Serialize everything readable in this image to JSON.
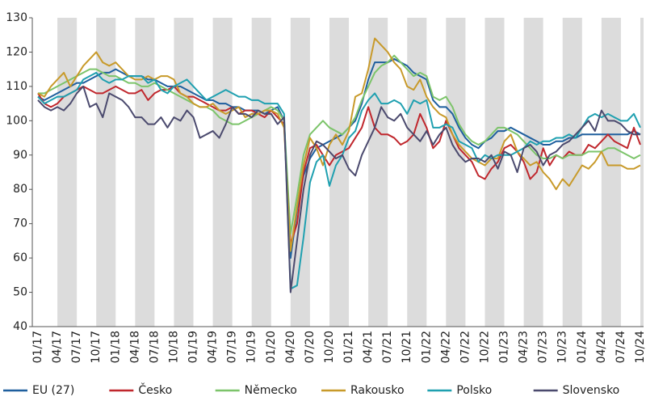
{
  "chart_data": {
    "type": "line",
    "categories": [
      "01/17",
      null,
      null,
      "04/17",
      null,
      null,
      "07/17",
      null,
      null,
      "10/17",
      null,
      null,
      "01/18",
      null,
      null,
      "04/18",
      null,
      null,
      "07/18",
      null,
      null,
      "10/18",
      null,
      null,
      "01/19",
      null,
      null,
      "04/19",
      null,
      null,
      "07/19",
      null,
      null,
      "10/19",
      null,
      null,
      "01/20",
      null,
      null,
      "04/20",
      null,
      null,
      "07/20",
      null,
      null,
      "10/20",
      null,
      null,
      "01/21",
      null,
      null,
      "04/21",
      null,
      null,
      "07/21",
      null,
      null,
      "10/21",
      null,
      null,
      "01/22",
      null,
      null,
      "04/22",
      null,
      null,
      "07/22",
      null,
      null,
      "10/22",
      null,
      null,
      "01/23",
      null,
      null,
      "04/23",
      null,
      null,
      "07/23",
      null,
      null,
      "10/23",
      null,
      null,
      "01/24",
      null,
      null,
      "04/24",
      null,
      null,
      "07/24",
      null,
      null,
      "10/24"
    ],
    "ylim": [
      40,
      130
    ],
    "yticks": [
      40,
      50,
      60,
      70,
      80,
      90,
      100,
      110,
      120,
      130
    ],
    "series": [
      {
        "name": "EU (27)",
        "color": "#1f5f9e",
        "values": [
          107,
          106,
          107,
          108,
          109,
          110,
          111,
          111,
          112,
          113,
          114,
          114,
          115,
          114,
          113,
          113,
          113,
          112,
          112,
          111,
          110,
          110,
          110,
          109,
          108,
          107,
          106,
          106,
          105,
          105,
          104,
          104,
          103,
          103,
          103,
          102,
          103,
          104,
          100,
          60,
          74,
          84,
          89,
          92,
          93,
          94,
          95,
          96,
          98,
          100,
          105,
          112,
          117,
          117,
          117,
          118,
          117,
          116,
          114,
          113,
          112,
          106,
          104,
          104,
          102,
          98,
          95,
          93,
          92,
          94,
          95,
          97,
          97,
          98,
          97,
          96,
          95,
          94,
          93,
          93,
          94,
          94,
          95,
          95,
          96,
          96,
          96,
          96,
          96,
          96,
          96,
          96,
          97,
          96
        ]
      },
      {
        "name": "Česko",
        "color": "#c0272d",
        "values": [
          108,
          105,
          104,
          105,
          107,
          108,
          109,
          110,
          109,
          108,
          108,
          109,
          110,
          109,
          108,
          108,
          109,
          106,
          108,
          109,
          109,
          110,
          108,
          107,
          107,
          106,
          105,
          104,
          103,
          103,
          104,
          102,
          103,
          103,
          102,
          101,
          103,
          101,
          99,
          64,
          70,
          85,
          92,
          93,
          90,
          87,
          90,
          91,
          92,
          95,
          98,
          104,
          98,
          96,
          96,
          95,
          93,
          94,
          96,
          102,
          98,
          92,
          94,
          100,
          96,
          92,
          90,
          88,
          84,
          83,
          86,
          88,
          92,
          93,
          91,
          88,
          83,
          85,
          92,
          87,
          90,
          89,
          91,
          90,
          90,
          93,
          92,
          94,
          96,
          94,
          93,
          92,
          98,
          93
        ]
      },
      {
        "name": "Německo",
        "color": "#7cc46a",
        "values": [
          108,
          108,
          109,
          110,
          111,
          112,
          113,
          114,
          115,
          115,
          114,
          113,
          113,
          112,
          111,
          111,
          110,
          110,
          111,
          110,
          109,
          108,
          107,
          106,
          105,
          104,
          104,
          103,
          101,
          100,
          99,
          99,
          100,
          101,
          102,
          103,
          104,
          103,
          100,
          67,
          78,
          90,
          96,
          98,
          100,
          98,
          97,
          96,
          98,
          101,
          106,
          110,
          114,
          116,
          117,
          119,
          117,
          115,
          113,
          114,
          113,
          107,
          106,
          107,
          104,
          99,
          96,
          94,
          93,
          94,
          96,
          98,
          98,
          97,
          96,
          94,
          92,
          90,
          89,
          89,
          90,
          89,
          90,
          90,
          90,
          91,
          91,
          91,
          92,
          92,
          91,
          90,
          89,
          90
        ]
      },
      {
        "name": "Rakousko",
        "color": "#c89a2a",
        "values": [
          108,
          107,
          110,
          112,
          114,
          110,
          113,
          116,
          118,
          120,
          117,
          116,
          117,
          115,
          113,
          112,
          112,
          113,
          112,
          113,
          113,
          112,
          108,
          107,
          105,
          104,
          104,
          105,
          103,
          102,
          103,
          104,
          101,
          102,
          102,
          103,
          103,
          102,
          98,
          62,
          75,
          87,
          95,
          92,
          87,
          93,
          96,
          93,
          97,
          107,
          108,
          115,
          124,
          122,
          120,
          117,
          115,
          110,
          109,
          112,
          107,
          104,
          102,
          101,
          96,
          93,
          91,
          89,
          88,
          87,
          89,
          89,
          94,
          96,
          91,
          89,
          87,
          88,
          85,
          83,
          80,
          83,
          81,
          84,
          87,
          86,
          88,
          91,
          87,
          87,
          87,
          86,
          86,
          87
        ]
      },
      {
        "name": "Polsko",
        "color": "#1fa0b0",
        "values": [
          107,
          105,
          106,
          107,
          107,
          108,
          109,
          112,
          113,
          114,
          112,
          111,
          112,
          112,
          113,
          113,
          113,
          111,
          112,
          109,
          108,
          110,
          111,
          112,
          110,
          108,
          106,
          107,
          108,
          109,
          108,
          107,
          107,
          106,
          106,
          105,
          105,
          105,
          102,
          51,
          52,
          66,
          82,
          88,
          90,
          81,
          87,
          90,
          95,
          97,
          103,
          106,
          108,
          105,
          105,
          106,
          105,
          102,
          106,
          105,
          106,
          98,
          98,
          99,
          98,
          94,
          93,
          92,
          88,
          90,
          89,
          90,
          90,
          90,
          91,
          92,
          94,
          93,
          94,
          94,
          95,
          95,
          96,
          95,
          98,
          101,
          102,
          101,
          102,
          101,
          100,
          100,
          102,
          98
        ]
      },
      {
        "name": "Slovensko",
        "color": "#4b4a6e",
        "values": [
          106,
          104,
          103,
          104,
          103,
          105,
          108,
          110,
          104,
          105,
          101,
          108,
          107,
          106,
          104,
          101,
          101,
          99,
          99,
          101,
          98,
          101,
          100,
          103,
          101,
          95,
          96,
          97,
          95,
          99,
          104,
          102,
          102,
          101,
          103,
          102,
          102,
          99,
          101,
          50,
          65,
          80,
          90,
          94,
          93,
          91,
          89,
          90,
          86,
          84,
          90,
          94,
          98,
          104,
          101,
          100,
          102,
          98,
          96,
          94,
          97,
          93,
          96,
          98,
          93,
          90,
          88,
          89,
          89,
          88,
          90,
          86,
          91,
          90,
          85,
          92,
          93,
          91,
          87,
          90,
          91,
          93,
          94,
          96,
          98,
          100,
          97,
          103,
          100,
          100,
          99,
          97,
          96,
          96
        ]
      }
    ]
  }
}
